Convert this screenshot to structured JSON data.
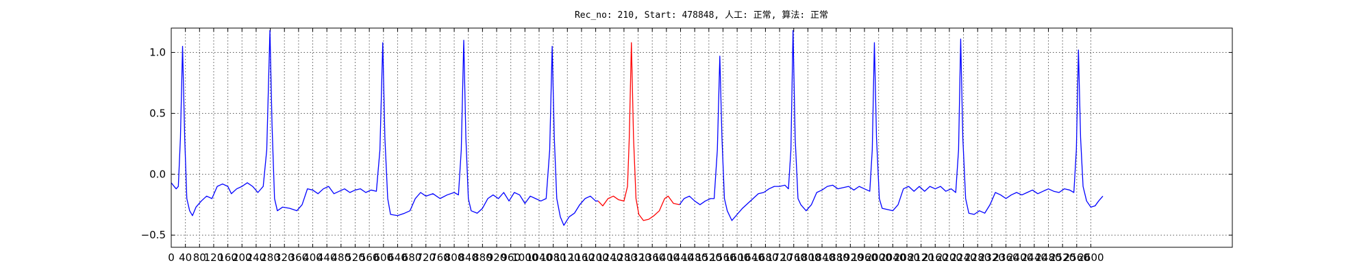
{
  "chart_data": {
    "type": "line",
    "title": "Rec_no: 210, Start: 478848, 人工: 正常, 算法: 正常",
    "xlim": [
      0,
      3000
    ],
    "ylim": [
      -0.6,
      1.2
    ],
    "xticks": [
      0,
      40,
      80,
      120,
      160,
      200,
      240,
      280,
      320,
      360,
      400,
      440,
      480,
      520,
      560,
      600,
      640,
      680,
      720,
      760,
      800,
      840,
      880,
      920,
      960,
      1000,
      1040,
      1080,
      1120,
      1160,
      1200,
      1240,
      1280,
      1320,
      1360,
      1400,
      1440,
      1480,
      1520,
      1560,
      1600,
      1640,
      1680,
      1720,
      1760,
      1800,
      1840,
      1880,
      1920,
      1960,
      2000,
      2040,
      2080,
      2120,
      2160,
      2200,
      2240,
      2280,
      2320,
      2360,
      2400,
      2440,
      2480,
      2520,
      2560,
      2600
    ],
    "yticks": [
      {
        "value": -0.5,
        "label": "−0.5"
      },
      {
        "value": 0,
        "label": "0.0"
      },
      0.5,
      {
        "value": 1,
        "label": "1.0"
      }
    ],
    "grid": true,
    "series": [
      {
        "color": "#0000ff",
        "x": [
          0,
          8,
          14,
          20,
          26,
          32,
          38,
          44,
          52,
          60,
          70,
          85,
          100,
          115,
          130,
          145,
          160,
          170,
          185,
          200,
          215,
          230,
          245,
          260,
          270,
          279,
          285,
          292,
          300,
          315,
          335,
          355,
          370,
          385,
          400,
          415,
          430,
          445,
          460,
          475,
          490,
          505,
          520,
          535,
          550,
          565,
          580,
          590,
          598,
          604,
          612,
          620,
          640,
          660,
          675,
          690,
          705,
          720,
          740,
          760,
          780,
          800,
          812,
          820,
          827,
          833,
          840,
          848,
          865,
          880,
          895,
          910,
          925,
          940,
          955,
          970,
          985,
          1000,
          1015,
          1030,
          1045,
          1060,
          1070,
          1077,
          1083,
          1090,
          1100,
          1110,
          1125,
          1140,
          1155,
          1170,
          1185,
          1200,
          1207,
          1301,
          1437,
          1450,
          1465,
          1480,
          1495,
          1510,
          1525,
          1535,
          1544,
          1551,
          1557,
          1564,
          1572,
          1585,
          1600,
          1615,
          1630,
          1645,
          1660,
          1675,
          1690,
          1705,
          1720,
          1735,
          1745,
          1752,
          1758,
          1764,
          1772,
          1780,
          1795,
          1810,
          1825,
          1840,
          1855,
          1870,
          1885,
          1900,
          1915,
          1930,
          1945,
          1960,
          1975,
          1982,
          1988,
          1994,
          2002,
          2010,
          2025,
          2040,
          2055,
          2070,
          2085,
          2100,
          2115,
          2130,
          2145,
          2160,
          2175,
          2190,
          2205,
          2218,
          2226,
          2232,
          2238,
          2246,
          2255,
          2270,
          2285,
          2300,
          2315,
          2330,
          2345,
          2360,
          2375,
          2390,
          2405,
          2420,
          2435,
          2450,
          2465,
          2480,
          2495,
          2510,
          2525,
          2540,
          2552,
          2559,
          2565,
          2571,
          2578,
          2588,
          2600,
          2612,
          2622,
          2634
        ],
        "values": [
          -0.07,
          -0.1,
          -0.12,
          -0.1,
          0.3,
          1.05,
          0.3,
          -0.2,
          -0.3,
          -0.34,
          -0.27,
          -0.22,
          -0.18,
          -0.2,
          -0.1,
          -0.08,
          -0.1,
          -0.16,
          -0.12,
          -0.1,
          -0.07,
          -0.1,
          -0.15,
          -0.1,
          0.2,
          1.18,
          0.4,
          -0.2,
          -0.3,
          -0.27,
          -0.28,
          -0.3,
          -0.25,
          -0.12,
          -0.13,
          -0.16,
          -0.12,
          -0.1,
          -0.16,
          -0.14,
          -0.12,
          -0.15,
          -0.13,
          -0.12,
          -0.15,
          -0.13,
          -0.14,
          0.2,
          1.08,
          0.3,
          -0.2,
          -0.33,
          -0.34,
          -0.32,
          -0.3,
          -0.2,
          -0.15,
          -0.18,
          -0.16,
          -0.2,
          -0.17,
          -0.15,
          -0.17,
          0.2,
          1.1,
          0.3,
          -0.2,
          -0.3,
          -0.32,
          -0.28,
          -0.2,
          -0.17,
          -0.2,
          -0.15,
          -0.22,
          -0.15,
          -0.17,
          -0.24,
          -0.18,
          -0.2,
          -0.22,
          -0.2,
          0.2,
          1.05,
          0.3,
          -0.2,
          -0.35,
          -0.42,
          -0.35,
          -0.32,
          -0.25,
          -0.2,
          -0.18,
          -0.22,
          -0.22,
          null,
          -0.25,
          -0.2,
          -0.18,
          -0.22,
          -0.25,
          -0.22,
          -0.2,
          -0.2,
          0.2,
          0.97,
          0.3,
          -0.2,
          -0.3,
          -0.38,
          -0.33,
          -0.28,
          -0.24,
          -0.2,
          -0.16,
          -0.15,
          -0.12,
          -0.1,
          -0.1,
          -0.09,
          -0.12,
          0.2,
          1.18,
          0.3,
          -0.2,
          -0.25,
          -0.3,
          -0.25,
          -0.15,
          -0.13,
          -0.1,
          -0.09,
          -0.12,
          -0.11,
          -0.1,
          -0.13,
          -0.1,
          -0.12,
          -0.14,
          0.2,
          1.08,
          0.3,
          -0.2,
          -0.28,
          -0.29,
          -0.3,
          -0.25,
          -0.12,
          -0.1,
          -0.14,
          -0.1,
          -0.14,
          -0.1,
          -0.12,
          -0.1,
          -0.14,
          -0.12,
          -0.15,
          0.2,
          1.11,
          0.3,
          -0.2,
          -0.32,
          -0.33,
          -0.3,
          -0.32,
          -0.25,
          -0.15,
          -0.17,
          -0.2,
          -0.17,
          -0.15,
          -0.17,
          -0.15,
          -0.13,
          -0.16,
          -0.14,
          -0.12,
          -0.14,
          -0.15,
          -0.12,
          -0.13,
          -0.15,
          0.2,
          1.02,
          0.3,
          -0.1,
          -0.22,
          -0.27,
          -0.26,
          -0.22,
          -0.18
        ]
      },
      {
        "color": "#ff0000",
        "x": [
          1207,
          1220,
          1235,
          1250,
          1265,
          1280,
          1290,
          1295,
          1301,
          1307,
          1314,
          1322,
          1335,
          1350,
          1365,
          1380,
          1395,
          1405,
          1420,
          1437
        ],
        "values": [
          -0.22,
          -0.26,
          -0.2,
          -0.18,
          -0.21,
          -0.22,
          -0.1,
          0.3,
          1.08,
          0.3,
          -0.2,
          -0.33,
          -0.38,
          -0.37,
          -0.34,
          -0.3,
          -0.2,
          -0.18,
          -0.24,
          -0.25
        ]
      }
    ]
  }
}
